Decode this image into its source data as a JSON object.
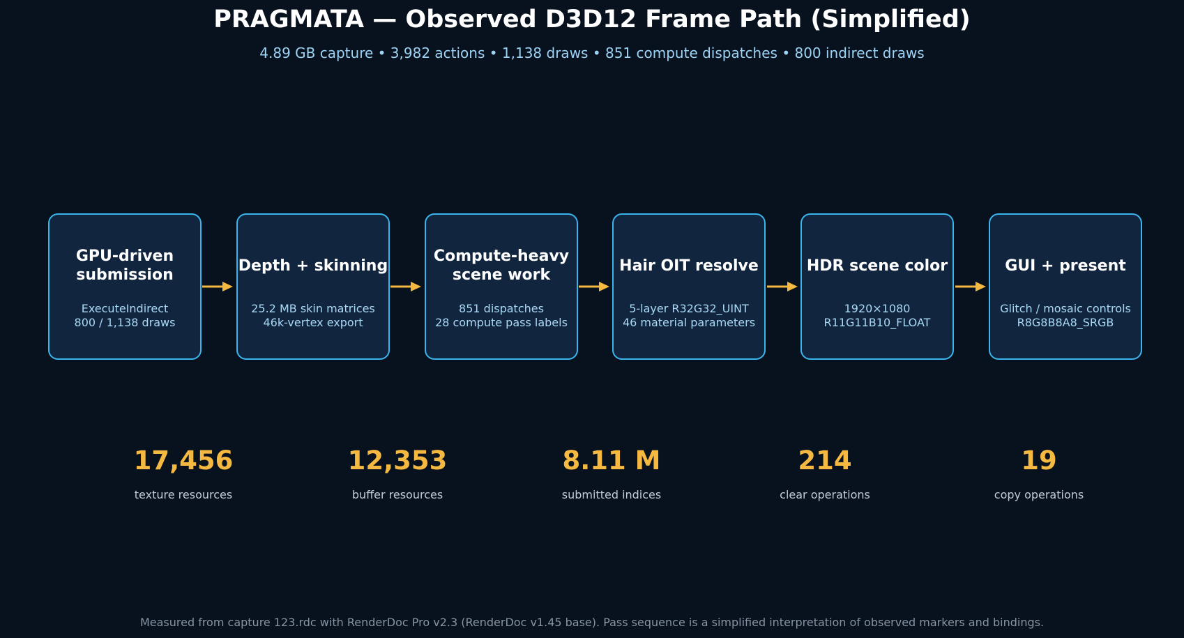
{
  "header": {
    "title": "PRAGMATA — Observed D3D12 Frame Path (Simplified)",
    "subtitle": "4.89 GB capture  •  3,982 actions  •  1,138 draws  •  851 compute dispatches  •  800 indirect draws"
  },
  "colors": {
    "background": "#08111e",
    "box_fill": "#11253f",
    "box_border": "#3bb6ec",
    "arrow": "#f5b942",
    "stat_value": "#f5b942",
    "subtitle": "#9dd3f5"
  },
  "stages": [
    {
      "title": "GPU-driven\nsubmission",
      "detail1": "ExecuteIndirect",
      "detail2": "800 / 1,138 draws"
    },
    {
      "title": "Depth + skinning",
      "detail1": "25.2 MB skin matrices",
      "detail2": "46k-vertex export"
    },
    {
      "title": "Compute-heavy\nscene work",
      "detail1": "851 dispatches",
      "detail2": "28 compute pass labels"
    },
    {
      "title": "Hair OIT resolve",
      "detail1": "5-layer R32G32_UINT",
      "detail2": "46 material parameters"
    },
    {
      "title": "HDR scene color",
      "detail1": "1920×1080",
      "detail2": "R11G11B10_FLOAT"
    },
    {
      "title": "GUI + present",
      "detail1": "Glitch / mosaic controls",
      "detail2": "R8G8B8A8_SRGB"
    }
  ],
  "stats": [
    {
      "value": "17,456",
      "label": "texture resources"
    },
    {
      "value": "12,353",
      "label": "buffer resources"
    },
    {
      "value": "8.11 M",
      "label": "submitted indices"
    },
    {
      "value": "214",
      "label": "clear operations"
    },
    {
      "value": "19",
      "label": "copy operations"
    }
  ],
  "footnote": "Measured from capture 123.rdc with RenderDoc Pro v2.3 (RenderDoc v1.45 base). Pass sequence is a simplified interpretation of observed markers and bindings."
}
